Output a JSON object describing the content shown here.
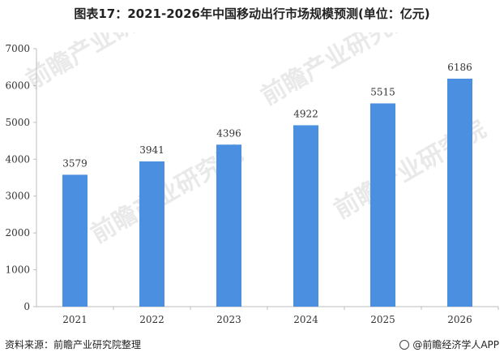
{
  "title": "图表17：2021-2026年中国移动出行市场规模预测(单位：亿元)",
  "source": "资料来源：前瞻产业研究院整理",
  "brand": "@前瞻经济学人APP",
  "watermark": "前瞻产业研究院",
  "colors": {
    "bar": "#4a8fe0",
    "axis": "#bdbdbd",
    "text": "#333333"
  },
  "chart_data": {
    "type": "bar",
    "title": "图表17：2021-2026年中国移动出行市场规模预测(单位：亿元)",
    "xlabel": "",
    "ylabel": "",
    "categories": [
      "2021",
      "2022",
      "2023",
      "2024",
      "2025",
      "2026"
    ],
    "values": [
      3579,
      3941,
      4396,
      4922,
      5515,
      6186
    ],
    "ylim": [
      0,
      7000
    ],
    "yticks": [
      0,
      1000,
      2000,
      3000,
      4000,
      5000,
      6000,
      7000
    ],
    "grid": false,
    "legend": "none",
    "data_labels": true
  }
}
